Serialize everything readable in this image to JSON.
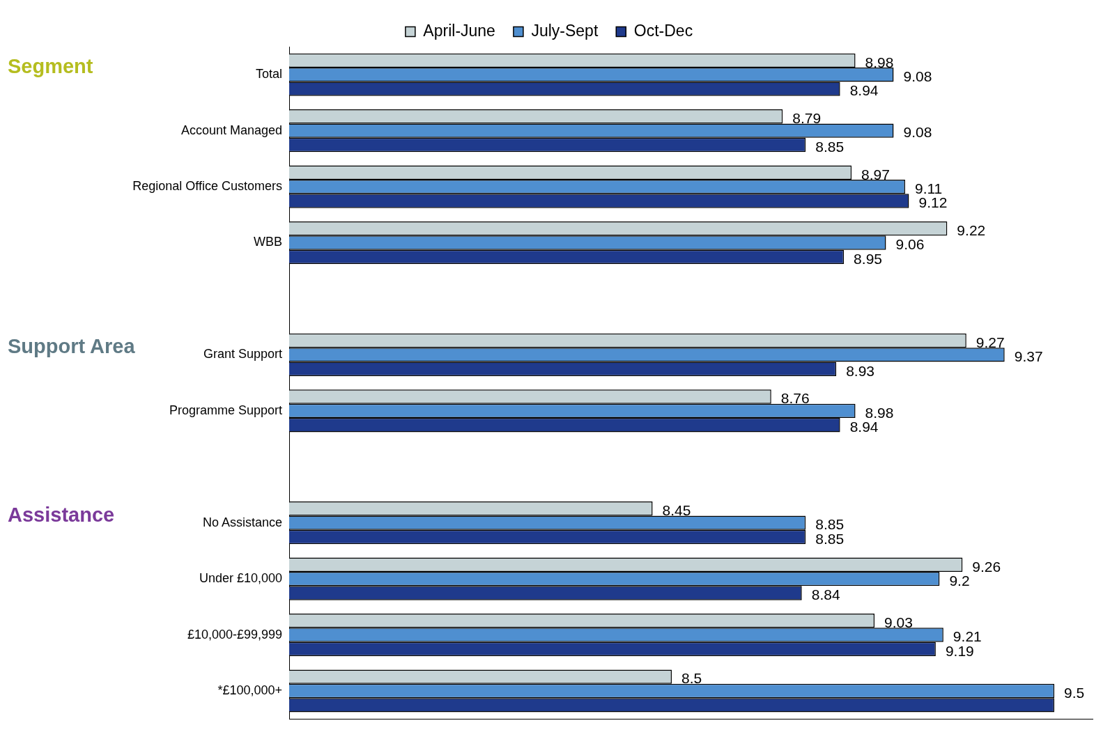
{
  "chart_data": {
    "type": "bar",
    "orientation": "horizontal",
    "categories": [
      "Total",
      "Account Managed",
      "Regional Office Customers",
      "WBB",
      null,
      "Grant Support",
      "Programme Support",
      null,
      "No Assistance",
      "Under £10,000",
      "£10,000-£99,999",
      "*£100,000+"
    ],
    "series": [
      {
        "name": "April-June",
        "color": "#c5d3d6",
        "values": [
          8.98,
          8.79,
          8.97,
          9.22,
          null,
          9.27,
          8.76,
          null,
          8.45,
          9.26,
          9.03,
          8.5
        ],
        "value_labels": [
          "8.98",
          "8.79",
          "8.97",
          "9.22",
          null,
          "9.27",
          "8.76",
          null,
          "8.45",
          "9.26",
          "9.03",
          "8.5"
        ]
      },
      {
        "name": "July-Sept",
        "color": "#4f8fd0",
        "values": [
          9.08,
          9.08,
          9.11,
          9.06,
          null,
          9.37,
          8.98,
          null,
          8.85,
          9.2,
          9.21,
          9.5
        ],
        "value_labels": [
          "9.08",
          "9.08",
          "9.11",
          "9.06",
          null,
          "9.37",
          "8.98",
          null,
          "8.85",
          "9.2",
          "9.21",
          "9.5"
        ]
      },
      {
        "name": "Oct-Dec",
        "color": "#1f3a8c",
        "values": [
          8.94,
          8.85,
          9.12,
          8.95,
          null,
          8.93,
          8.94,
          null,
          8.85,
          8.84,
          9.19,
          9.5
        ],
        "value_labels": [
          "8.94",
          "8.85",
          "9.12",
          "8.95",
          null,
          "8.93",
          "8.94",
          null,
          "8.85",
          "8.84",
          "9.19",
          null
        ]
      }
    ],
    "xlim": [
      7.5,
      9.6
    ],
    "legend": "top",
    "annotations": [
      "Segment",
      "Support Area",
      "Assistance"
    ]
  }
}
